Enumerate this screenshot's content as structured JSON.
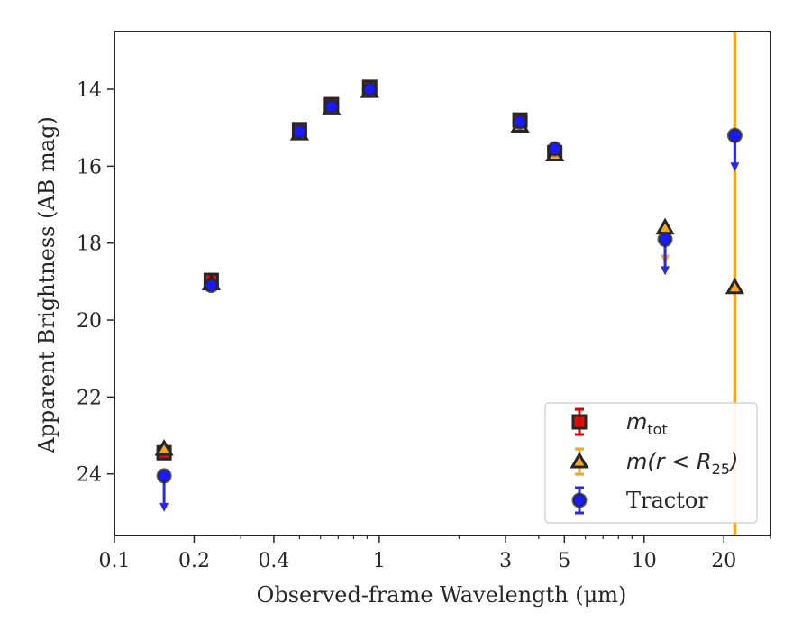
{
  "chart_data": {
    "type": "scatter",
    "xlabel": "Observed-frame Wavelength (μm)",
    "ylabel": "Apparent Brightness (AB mag)",
    "xscale": "log",
    "xlim": [
      0.1,
      30
    ],
    "ylim": [
      25.6,
      12.5
    ],
    "y_inverted": true,
    "xticks": [
      {
        "value": 0.1,
        "label": "0.1"
      },
      {
        "value": 0.2,
        "label": "0.2"
      },
      {
        "value": 0.4,
        "label": "0.4"
      },
      {
        "value": 1,
        "label": "1"
      },
      {
        "value": 3,
        "label": "3"
      },
      {
        "value": 5,
        "label": "5"
      },
      {
        "value": 10,
        "label": "10"
      },
      {
        "value": 20,
        "label": "20"
      }
    ],
    "yticks": [
      {
        "value": 14,
        "label": "14"
      },
      {
        "value": 16,
        "label": "16"
      },
      {
        "value": 18,
        "label": "18"
      },
      {
        "value": 20,
        "label": "20"
      },
      {
        "value": 22,
        "label": "22"
      },
      {
        "value": 24,
        "label": "24"
      }
    ],
    "grid": false,
    "legend_position": "bottom-right",
    "vertical_line": {
      "x": 22,
      "color": "#f5a623"
    },
    "series": [
      {
        "name_main": "m",
        "name_sub": "tot",
        "marker": "square",
        "face": "#e00000",
        "edge": "#262626",
        "errcolor": "#e00000",
        "points": [
          {
            "x": 0.154,
            "y": 23.45,
            "err": 0
          },
          {
            "x": 0.232,
            "y": 18.97,
            "err": 0
          },
          {
            "x": 0.5,
            "y": 15.05,
            "err": 0.1
          },
          {
            "x": 0.66,
            "y": 14.4,
            "err": 0.1
          },
          {
            "x": 0.92,
            "y": 13.95,
            "err": 0.1
          },
          {
            "x": 3.4,
            "y": 14.8,
            "err": 0
          },
          {
            "x": 4.6,
            "y": 15.65,
            "err": 0
          }
        ]
      },
      {
        "name_main": "m(r < R",
        "name_sub": "25",
        "name_tail": ")",
        "marker": "triangle",
        "face": "#f5a623",
        "edge": "#262626",
        "errcolor": "#f5a623",
        "points": [
          {
            "x": 0.154,
            "y": 23.35,
            "err": 0
          },
          {
            "x": 0.232,
            "y": 19.05,
            "err": 0
          },
          {
            "x": 0.5,
            "y": 15.15,
            "err": 0
          },
          {
            "x": 0.66,
            "y": 14.5,
            "err": 0
          },
          {
            "x": 0.92,
            "y": 14.05,
            "err": 0
          },
          {
            "x": 3.4,
            "y": 14.95,
            "err": 0
          },
          {
            "x": 4.6,
            "y": 15.7,
            "err": 0
          },
          {
            "x": 12.0,
            "y": 17.6,
            "err": 0,
            "upper_limit": true
          },
          {
            "x": 22.0,
            "y": 19.15,
            "err": 0
          }
        ]
      },
      {
        "name_main": "Tractor",
        "marker": "circle",
        "face": "#1a1aff",
        "edge": "#262626",
        "errcolor": "#2a2ae0",
        "points": [
          {
            "x": 0.154,
            "y": 24.05,
            "err": 0,
            "upper_limit": true
          },
          {
            "x": 0.232,
            "y": 19.1,
            "err": 0
          },
          {
            "x": 0.5,
            "y": 15.1,
            "err": 0
          },
          {
            "x": 0.66,
            "y": 14.45,
            "err": 0
          },
          {
            "x": 0.92,
            "y": 14.0,
            "err": 0
          },
          {
            "x": 3.4,
            "y": 14.85,
            "err": 0
          },
          {
            "x": 4.6,
            "y": 15.55,
            "err": 0
          },
          {
            "x": 12.0,
            "y": 17.9,
            "err": 0,
            "upper_limit": true
          },
          {
            "x": 22.0,
            "y": 15.2,
            "err": 0,
            "upper_limit": true
          }
        ]
      }
    ]
  }
}
